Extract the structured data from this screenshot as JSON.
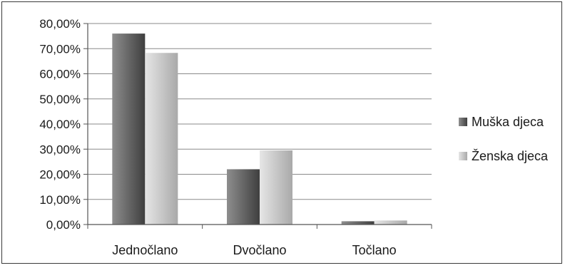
{
  "chart_data": {
    "type": "bar",
    "categories": [
      "Jednočlano",
      "Dvočlano",
      "Točlano"
    ],
    "series": [
      {
        "name": "Muška djeca",
        "values": [
          76.0,
          22.0,
          1.3
        ],
        "color_light": "#8e8e8e",
        "color_dark": "#3f3f3f"
      },
      {
        "name": "Ženska djeca",
        "values": [
          68.3,
          29.5,
          1.6
        ],
        "color_light": "#e6e6e6",
        "color_dark": "#a9a9a9"
      }
    ],
    "y_ticks": [
      "0,00%",
      "10,00%",
      "20,00%",
      "30,00%",
      "40,00%",
      "50,00%",
      "60,00%",
      "70,00%",
      "80,00%"
    ],
    "ylim": [
      0,
      80
    ],
    "title": "",
    "xlabel": "",
    "ylabel": "",
    "grid": true,
    "legend_position": "right"
  }
}
